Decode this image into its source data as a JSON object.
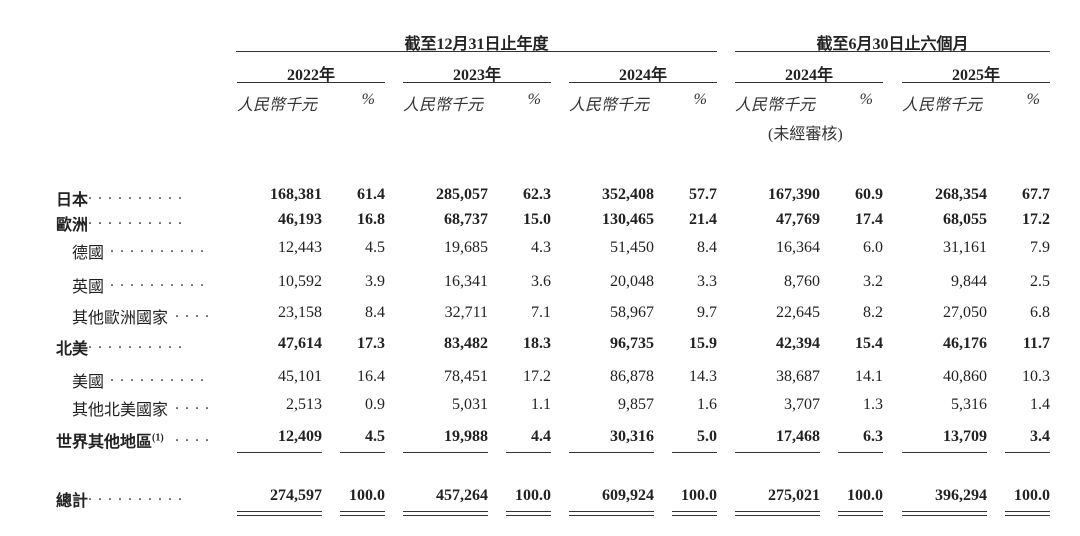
{
  "header": {
    "group1_title": "截至12月31日止年度",
    "group2_title": "截至6月30日止六個月",
    "years": [
      "2022年",
      "2023年",
      "2024年",
      "2024年",
      "2025年"
    ],
    "amount_unit": "人民幣千元",
    "pct_unit": "%",
    "unaudited_note": "(未經審核)"
  },
  "rows": [
    {
      "label": "日本",
      "bold": true,
      "indent": false,
      "values": [
        "168,381",
        "61.4",
        "285,057",
        "62.3",
        "352,408",
        "57.7",
        "167,390",
        "60.9",
        "268,354",
        "67.7"
      ]
    },
    {
      "label": "歐洲",
      "bold": true,
      "indent": false,
      "values": [
        "46,193",
        "16.8",
        "68,737",
        "15.0",
        "130,465",
        "21.4",
        "47,769",
        "17.4",
        "68,055",
        "17.2"
      ]
    },
    {
      "label": "德國",
      "bold": false,
      "indent": true,
      "values": [
        "12,443",
        "4.5",
        "19,685",
        "4.3",
        "51,450",
        "8.4",
        "16,364",
        "6.0",
        "31,161",
        "7.9"
      ]
    },
    {
      "label": "英國",
      "bold": false,
      "indent": true,
      "values": [
        "10,592",
        "3.9",
        "16,341",
        "3.6",
        "20,048",
        "3.3",
        "8,760",
        "3.2",
        "9,844",
        "2.5"
      ]
    },
    {
      "label": "其他歐洲國家",
      "bold": false,
      "indent": true,
      "values": [
        "23,158",
        "8.4",
        "32,711",
        "7.1",
        "58,967",
        "9.7",
        "22,645",
        "8.2",
        "27,050",
        "6.8"
      ]
    },
    {
      "label": "北美",
      "bold": true,
      "indent": false,
      "values": [
        "47,614",
        "17.3",
        "83,482",
        "18.3",
        "96,735",
        "15.9",
        "42,394",
        "15.4",
        "46,176",
        "11.7"
      ]
    },
    {
      "label": "美國",
      "bold": false,
      "indent": true,
      "values": [
        "45,101",
        "16.4",
        "78,451",
        "17.2",
        "86,878",
        "14.3",
        "38,687",
        "14.1",
        "40,860",
        "10.3"
      ]
    },
    {
      "label": "其他北美國家",
      "bold": false,
      "indent": true,
      "values": [
        "2,513",
        "0.9",
        "5,031",
        "1.1",
        "9,857",
        "1.6",
        "3,707",
        "1.3",
        "5,316",
        "1.4"
      ]
    },
    {
      "label": "世界其他地區",
      "footnote": "(1)",
      "bold": true,
      "indent": false,
      "values": [
        "12,409",
        "4.5",
        "19,988",
        "4.4",
        "30,316",
        "5.0",
        "17,468",
        "6.3",
        "13,709",
        "3.4"
      ]
    },
    {
      "label": "總計",
      "bold": true,
      "indent": false,
      "values": [
        "274,597",
        "100.0",
        "457,264",
        "100.0",
        "609,924",
        "100.0",
        "275,021",
        "100.0",
        "396,294",
        "100.0"
      ]
    }
  ]
}
